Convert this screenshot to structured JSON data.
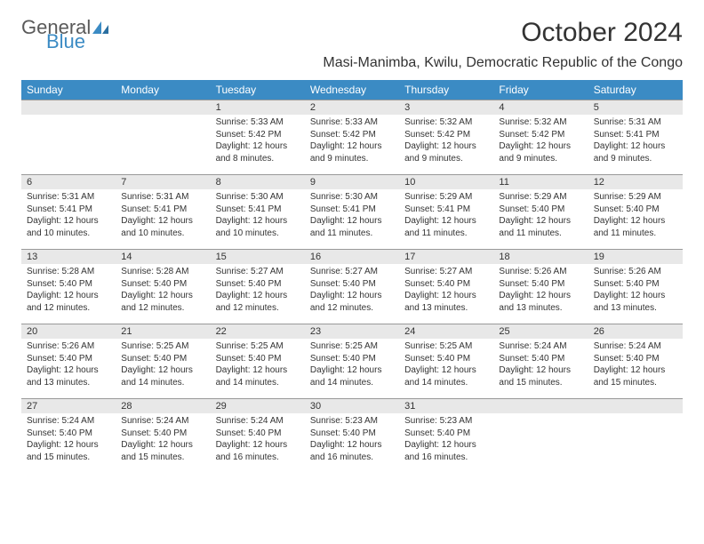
{
  "logo": {
    "part1": "General",
    "part2": "Blue"
  },
  "title": "October 2024",
  "subtitle": "Masi-Manimba, Kwilu, Democratic Republic of the Congo",
  "header_bg": "#3b8bc4",
  "header_fg": "#ffffff",
  "daynum_bg": "#e8e8e8",
  "body_bg": "#ffffff",
  "text_color": "#333333",
  "font_family": "Arial, Helvetica, sans-serif",
  "title_fontsize": 30,
  "subtitle_fontsize": 16,
  "dayheader_fontsize": 12,
  "daynum_fontsize": 11,
  "cell_fontsize": 10,
  "days": [
    "Sunday",
    "Monday",
    "Tuesday",
    "Wednesday",
    "Thursday",
    "Friday",
    "Saturday"
  ],
  "weeks": [
    [
      null,
      null,
      {
        "n": "1",
        "sr": "Sunrise: 5:33 AM",
        "ss": "Sunset: 5:42 PM",
        "dl1": "Daylight: 12 hours",
        "dl2": "and 8 minutes."
      },
      {
        "n": "2",
        "sr": "Sunrise: 5:33 AM",
        "ss": "Sunset: 5:42 PM",
        "dl1": "Daylight: 12 hours",
        "dl2": "and 9 minutes."
      },
      {
        "n": "3",
        "sr": "Sunrise: 5:32 AM",
        "ss": "Sunset: 5:42 PM",
        "dl1": "Daylight: 12 hours",
        "dl2": "and 9 minutes."
      },
      {
        "n": "4",
        "sr": "Sunrise: 5:32 AM",
        "ss": "Sunset: 5:42 PM",
        "dl1": "Daylight: 12 hours",
        "dl2": "and 9 minutes."
      },
      {
        "n": "5",
        "sr": "Sunrise: 5:31 AM",
        "ss": "Sunset: 5:41 PM",
        "dl1": "Daylight: 12 hours",
        "dl2": "and 9 minutes."
      }
    ],
    [
      {
        "n": "6",
        "sr": "Sunrise: 5:31 AM",
        "ss": "Sunset: 5:41 PM",
        "dl1": "Daylight: 12 hours",
        "dl2": "and 10 minutes."
      },
      {
        "n": "7",
        "sr": "Sunrise: 5:31 AM",
        "ss": "Sunset: 5:41 PM",
        "dl1": "Daylight: 12 hours",
        "dl2": "and 10 minutes."
      },
      {
        "n": "8",
        "sr": "Sunrise: 5:30 AM",
        "ss": "Sunset: 5:41 PM",
        "dl1": "Daylight: 12 hours",
        "dl2": "and 10 minutes."
      },
      {
        "n": "9",
        "sr": "Sunrise: 5:30 AM",
        "ss": "Sunset: 5:41 PM",
        "dl1": "Daylight: 12 hours",
        "dl2": "and 11 minutes."
      },
      {
        "n": "10",
        "sr": "Sunrise: 5:29 AM",
        "ss": "Sunset: 5:41 PM",
        "dl1": "Daylight: 12 hours",
        "dl2": "and 11 minutes."
      },
      {
        "n": "11",
        "sr": "Sunrise: 5:29 AM",
        "ss": "Sunset: 5:40 PM",
        "dl1": "Daylight: 12 hours",
        "dl2": "and 11 minutes."
      },
      {
        "n": "12",
        "sr": "Sunrise: 5:29 AM",
        "ss": "Sunset: 5:40 PM",
        "dl1": "Daylight: 12 hours",
        "dl2": "and 11 minutes."
      }
    ],
    [
      {
        "n": "13",
        "sr": "Sunrise: 5:28 AM",
        "ss": "Sunset: 5:40 PM",
        "dl1": "Daylight: 12 hours",
        "dl2": "and 12 minutes."
      },
      {
        "n": "14",
        "sr": "Sunrise: 5:28 AM",
        "ss": "Sunset: 5:40 PM",
        "dl1": "Daylight: 12 hours",
        "dl2": "and 12 minutes."
      },
      {
        "n": "15",
        "sr": "Sunrise: 5:27 AM",
        "ss": "Sunset: 5:40 PM",
        "dl1": "Daylight: 12 hours",
        "dl2": "and 12 minutes."
      },
      {
        "n": "16",
        "sr": "Sunrise: 5:27 AM",
        "ss": "Sunset: 5:40 PM",
        "dl1": "Daylight: 12 hours",
        "dl2": "and 12 minutes."
      },
      {
        "n": "17",
        "sr": "Sunrise: 5:27 AM",
        "ss": "Sunset: 5:40 PM",
        "dl1": "Daylight: 12 hours",
        "dl2": "and 13 minutes."
      },
      {
        "n": "18",
        "sr": "Sunrise: 5:26 AM",
        "ss": "Sunset: 5:40 PM",
        "dl1": "Daylight: 12 hours",
        "dl2": "and 13 minutes."
      },
      {
        "n": "19",
        "sr": "Sunrise: 5:26 AM",
        "ss": "Sunset: 5:40 PM",
        "dl1": "Daylight: 12 hours",
        "dl2": "and 13 minutes."
      }
    ],
    [
      {
        "n": "20",
        "sr": "Sunrise: 5:26 AM",
        "ss": "Sunset: 5:40 PM",
        "dl1": "Daylight: 12 hours",
        "dl2": "and 13 minutes."
      },
      {
        "n": "21",
        "sr": "Sunrise: 5:25 AM",
        "ss": "Sunset: 5:40 PM",
        "dl1": "Daylight: 12 hours",
        "dl2": "and 14 minutes."
      },
      {
        "n": "22",
        "sr": "Sunrise: 5:25 AM",
        "ss": "Sunset: 5:40 PM",
        "dl1": "Daylight: 12 hours",
        "dl2": "and 14 minutes."
      },
      {
        "n": "23",
        "sr": "Sunrise: 5:25 AM",
        "ss": "Sunset: 5:40 PM",
        "dl1": "Daylight: 12 hours",
        "dl2": "and 14 minutes."
      },
      {
        "n": "24",
        "sr": "Sunrise: 5:25 AM",
        "ss": "Sunset: 5:40 PM",
        "dl1": "Daylight: 12 hours",
        "dl2": "and 14 minutes."
      },
      {
        "n": "25",
        "sr": "Sunrise: 5:24 AM",
        "ss": "Sunset: 5:40 PM",
        "dl1": "Daylight: 12 hours",
        "dl2": "and 15 minutes."
      },
      {
        "n": "26",
        "sr": "Sunrise: 5:24 AM",
        "ss": "Sunset: 5:40 PM",
        "dl1": "Daylight: 12 hours",
        "dl2": "and 15 minutes."
      }
    ],
    [
      {
        "n": "27",
        "sr": "Sunrise: 5:24 AM",
        "ss": "Sunset: 5:40 PM",
        "dl1": "Daylight: 12 hours",
        "dl2": "and 15 minutes."
      },
      {
        "n": "28",
        "sr": "Sunrise: 5:24 AM",
        "ss": "Sunset: 5:40 PM",
        "dl1": "Daylight: 12 hours",
        "dl2": "and 15 minutes."
      },
      {
        "n": "29",
        "sr": "Sunrise: 5:24 AM",
        "ss": "Sunset: 5:40 PM",
        "dl1": "Daylight: 12 hours",
        "dl2": "and 16 minutes."
      },
      {
        "n": "30",
        "sr": "Sunrise: 5:23 AM",
        "ss": "Sunset: 5:40 PM",
        "dl1": "Daylight: 12 hours",
        "dl2": "and 16 minutes."
      },
      {
        "n": "31",
        "sr": "Sunrise: 5:23 AM",
        "ss": "Sunset: 5:40 PM",
        "dl1": "Daylight: 12 hours",
        "dl2": "and 16 minutes."
      },
      null,
      null
    ]
  ]
}
